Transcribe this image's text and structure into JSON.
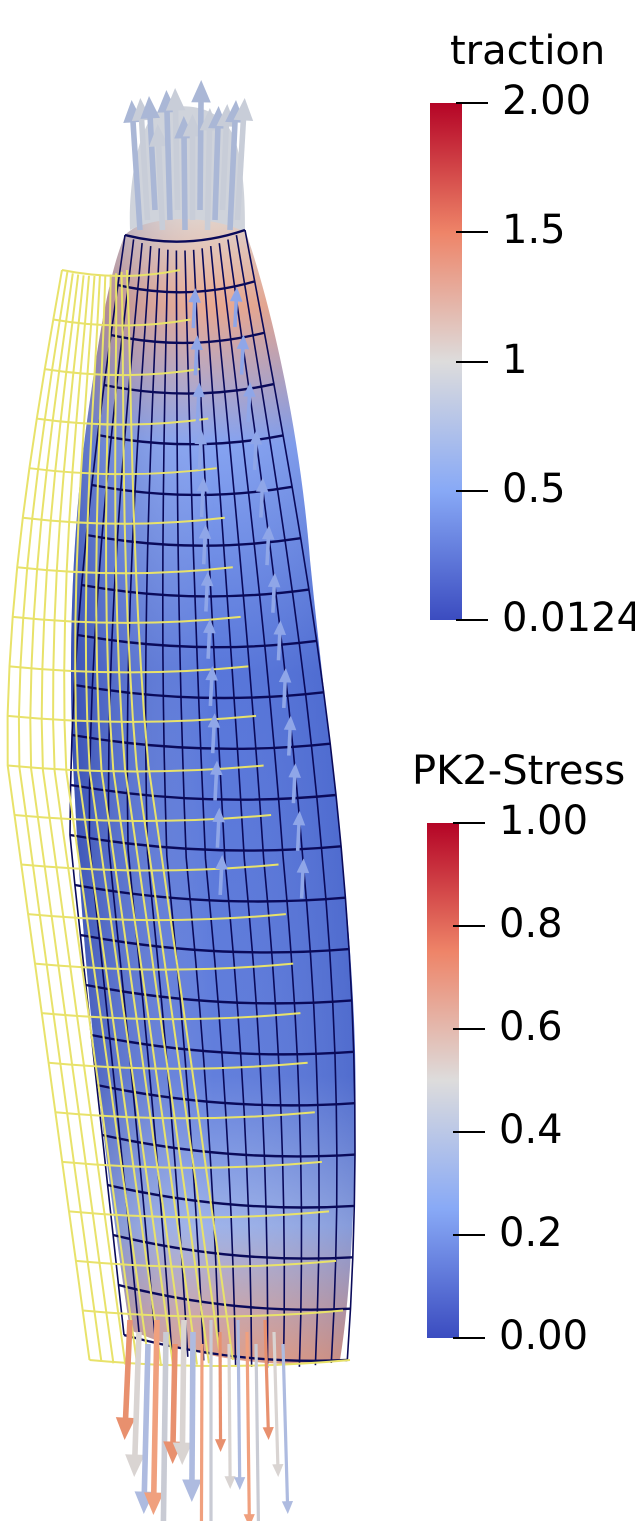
{
  "scene": {
    "description_icon": "deformed-mesh-icon",
    "undeformed_wire_color": "#e8e26a",
    "mesh_line_color": "#0a0a5a",
    "surface_low_color": "#3b4cc0",
    "surface_high_color": "#b40426"
  },
  "legends": {
    "traction": {
      "title": "traction",
      "ticks": [
        "2.00",
        "1.5",
        "1",
        "0.5",
        "0.0124"
      ],
      "range": [
        0.0124,
        2.0
      ],
      "colormap": [
        "#b40426",
        "#ee8468",
        "#dddcdc",
        "#88a9f6",
        "#3b4cc0"
      ]
    },
    "stress": {
      "title": "PK2-Stress",
      "ticks": [
        "1.00",
        "0.8",
        "0.6",
        "0.4",
        "0.2",
        "0.00"
      ],
      "range": [
        0.0,
        1.0
      ],
      "colormap": [
        "#b40426",
        "#ee8468",
        "#dddcdc",
        "#88a9f6",
        "#3b4cc0"
      ]
    }
  }
}
